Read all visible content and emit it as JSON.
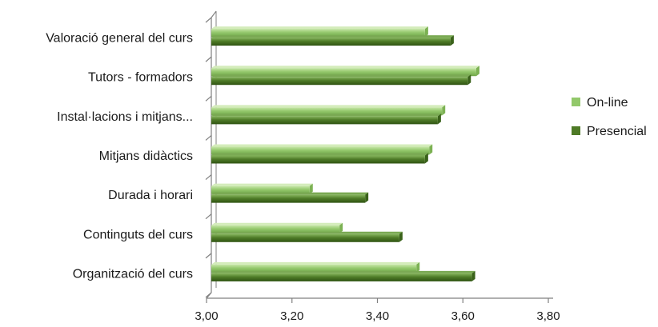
{
  "chart_data": {
    "type": "bar",
    "orientation": "horizontal",
    "categories": [
      "Valoració general del curs",
      "Tutors - formadors",
      "Instal·lacions i mitjans...",
      "Mitjans didàctics",
      "Durada i horari",
      "Continguts del curs",
      "Organització del curs"
    ],
    "series": [
      {
        "name": "On-line",
        "color": "#92c86a",
        "values": [
          3.5,
          3.62,
          3.54,
          3.51,
          3.23,
          3.3,
          3.48
        ]
      },
      {
        "name": "Presencial",
        "color": "#4e7a26",
        "values": [
          3.56,
          3.6,
          3.53,
          3.5,
          3.36,
          3.44,
          3.61
        ]
      }
    ],
    "xlim": [
      3.0,
      3.8
    ],
    "xticks": [
      "3,00",
      "3,20",
      "3,40",
      "3,60",
      "3,80"
    ],
    "title": "",
    "xlabel": "",
    "ylabel": "",
    "grid": false,
    "legend_position": "right"
  }
}
